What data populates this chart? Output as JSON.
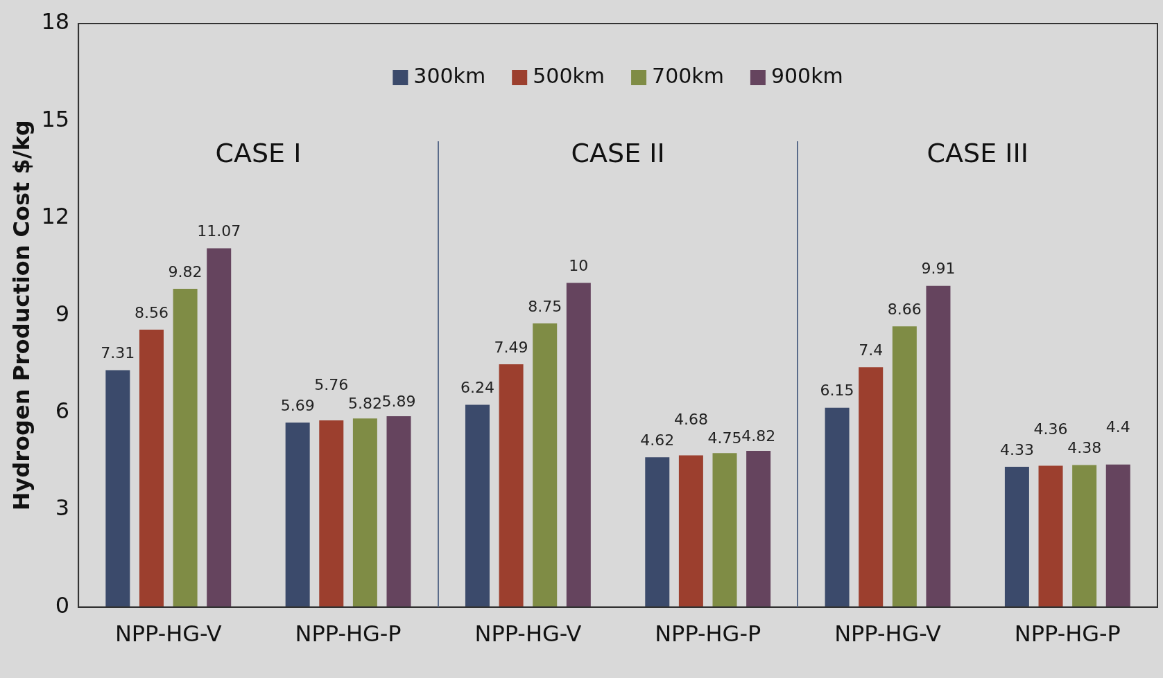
{
  "chart_data": {
    "type": "bar",
    "ylabel": "Hydrogen Production Cost $/kg",
    "categories": [
      "NPP-HG-V",
      "NPP-HG-P",
      "NPP-HG-V",
      "NPP-HG-P",
      "NPP-HG-V",
      "NPP-HG-P"
    ],
    "series": [
      {
        "name": "300km",
        "color": "#3b4a6b",
        "values": [
          7.31,
          5.69,
          6.24,
          4.62,
          6.15,
          4.33
        ]
      },
      {
        "name": "500km",
        "color": "#9c3f2e",
        "values": [
          8.56,
          5.76,
          7.49,
          4.68,
          7.4,
          4.36
        ]
      },
      {
        "name": "700km",
        "color": "#7f8c45",
        "values": [
          9.82,
          5.82,
          8.75,
          4.75,
          8.66,
          4.38
        ]
      },
      {
        "name": "900km",
        "color": "#65445e",
        "values": [
          11.07,
          5.89,
          10,
          4.82,
          9.91,
          4.4
        ]
      }
    ],
    "ylim": [
      0,
      18
    ],
    "yticks": [
      0,
      3,
      6,
      9,
      12,
      15,
      18
    ],
    "grid": false,
    "legend": "top",
    "data_labels": true,
    "annotations": [
      "CASE I",
      "CASE II",
      "CASE III"
    ]
  }
}
